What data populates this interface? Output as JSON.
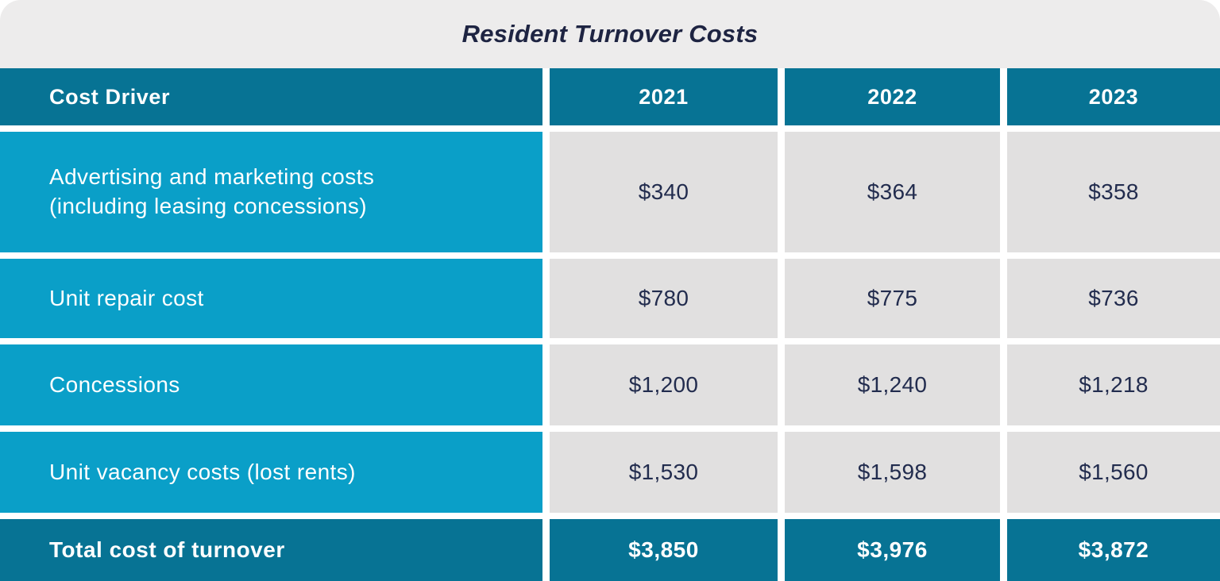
{
  "title": "Resident Turnover Costs",
  "colors": {
    "header_teal": "#077394",
    "row_cyan": "#0A9FC8",
    "value_gray": "#E1E0E0",
    "title_band_gray": "#EDECEC",
    "navy_text": "#222C4E",
    "gap_white": "#FFFFFF"
  },
  "table": {
    "columns": [
      "Cost Driver",
      "2021",
      "2022",
      "2023"
    ],
    "rows": [
      {
        "label": "Advertising and marketing costs\n(including leasing concessions)",
        "values": [
          "$340",
          "$364",
          "$358"
        ]
      },
      {
        "label": "Unit repair cost",
        "values": [
          "$780",
          "$775",
          "$736"
        ]
      },
      {
        "label": "Concessions",
        "values": [
          "$1,200",
          "$1,240",
          "$1,218"
        ]
      },
      {
        "label": "Unit vacancy costs (lost rents)",
        "values": [
          "$1,530",
          "$1,598",
          "$1,560"
        ]
      }
    ],
    "total": {
      "label": "Total cost of turnover",
      "values": [
        "$3,850",
        "$3,976",
        "$3,872"
      ]
    }
  },
  "chart_data": {
    "type": "table",
    "title": "Resident Turnover Costs",
    "columns": [
      "Cost Driver",
      "2021",
      "2022",
      "2023"
    ],
    "rows": [
      [
        "Advertising and marketing costs (including leasing concessions)",
        340,
        364,
        358
      ],
      [
        "Unit repair cost",
        780,
        775,
        736
      ],
      [
        "Concessions",
        1200,
        1240,
        1218
      ],
      [
        "Unit vacancy costs (lost rents)",
        1530,
        1598,
        1560
      ],
      [
        "Total cost of turnover",
        3850,
        3976,
        3872
      ]
    ]
  }
}
